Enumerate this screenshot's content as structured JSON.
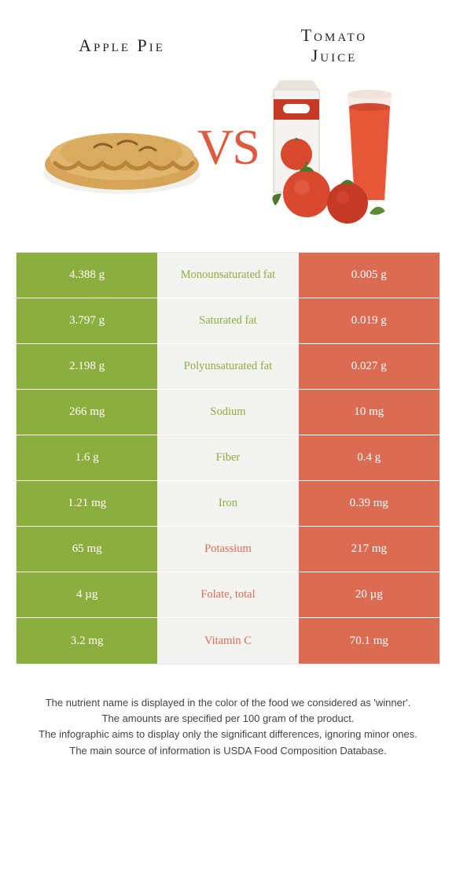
{
  "colors": {
    "left": "#8cae3e",
    "right": "#dc6b54",
    "vs": "#dc5a3d",
    "mid_bg": "#f3f3f0",
    "pie_crust": "#d7a55a",
    "pie_edge": "#b8833b",
    "tomato": "#d8492f",
    "tomato_dark": "#b0361f",
    "leaf": "#4a7a2a",
    "glass": "#e6573a",
    "carton_red": "#c63a25",
    "carton_white": "#f5f3ef"
  },
  "header": {
    "left_title": "Apple Pie",
    "right_title": "Tomato\nJuice",
    "vs_label": "VS"
  },
  "rows": [
    {
      "left": "4.388 g",
      "label": "Monounsaturated fat",
      "right": "0.005 g",
      "winner": "left"
    },
    {
      "left": "3.797 g",
      "label": "Saturated fat",
      "right": "0.019 g",
      "winner": "left"
    },
    {
      "left": "2.198 g",
      "label": "Polyunsaturated fat",
      "right": "0.027 g",
      "winner": "left"
    },
    {
      "left": "266 mg",
      "label": "Sodium",
      "right": "10 mg",
      "winner": "left"
    },
    {
      "left": "1.6 g",
      "label": "Fiber",
      "right": "0.4 g",
      "winner": "left"
    },
    {
      "left": "1.21 mg",
      "label": "Iron",
      "right": "0.39 mg",
      "winner": "left"
    },
    {
      "left": "65 mg",
      "label": "Potassium",
      "right": "217 mg",
      "winner": "right"
    },
    {
      "left": "4 µg",
      "label": "Folate, total",
      "right": "20 µg",
      "winner": "right"
    },
    {
      "left": "3.2 mg",
      "label": "Vitamin C",
      "right": "70.1 mg",
      "winner": "right"
    }
  ],
  "footer": [
    "The nutrient name is displayed in the color of the food we considered as 'winner'.",
    "The amounts are specified per 100 gram of the product.",
    "The infographic aims to display only the significant differences, ignoring minor ones.",
    "The main source of information is USDA Food Composition Database."
  ]
}
